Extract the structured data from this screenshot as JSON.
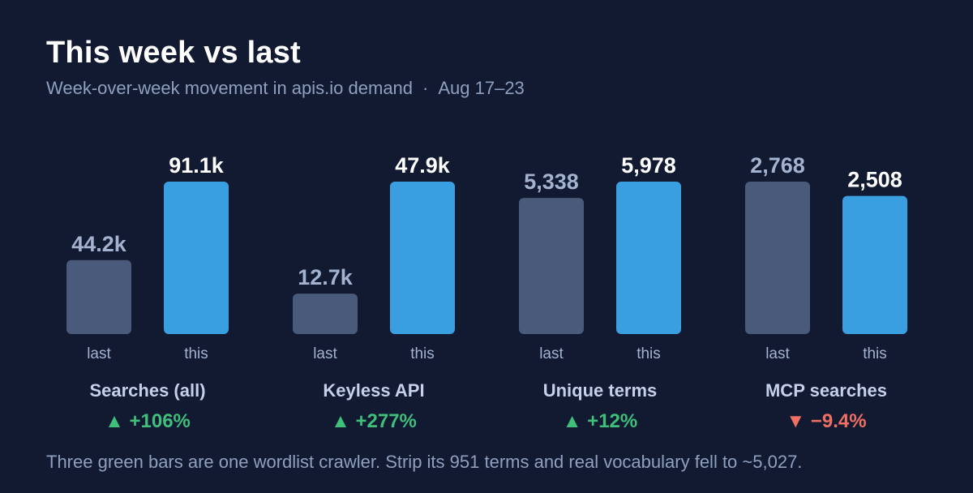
{
  "header": {
    "title": "This week vs last",
    "subtitle": "Week-over-week movement in apis.io demand",
    "separator": "·",
    "date_range": "Aug 17–23"
  },
  "colors": {
    "background": "#111a30",
    "last_bar": "#4a5a7a",
    "this_bar": "#3a9fe0",
    "last_label": "#a3b2cf",
    "this_label": "#ffffff",
    "up": "#3fbf7a",
    "down": "#ef6f62"
  },
  "chart_data": {
    "type": "bar",
    "bar_labels": [
      "last",
      "this"
    ],
    "groups": [
      {
        "name": "Searches (all)",
        "last": 44200,
        "this": 91100,
        "last_label": "44.2k",
        "this_label": "91.1k",
        "change": "▲ +106%",
        "direction": "up"
      },
      {
        "name": "Keyless API",
        "last": 12700,
        "this": 47900,
        "last_label": "12.7k",
        "this_label": "47.9k",
        "change": "▲ +277%",
        "direction": "up"
      },
      {
        "name": "Unique terms",
        "last": 5338,
        "this": 5978,
        "last_label": "5,338",
        "this_label": "5,978",
        "change": "▲ +12%",
        "direction": "up"
      },
      {
        "name": "MCP searches",
        "last": 2768,
        "this": 2508,
        "last_label": "2,768",
        "this_label": "2,508",
        "change": "▼ −9.4%",
        "direction": "down"
      }
    ]
  },
  "footnote": "Three green bars are one wordlist crawler. Strip its 951 terms and real vocabulary fell to ~5,027."
}
